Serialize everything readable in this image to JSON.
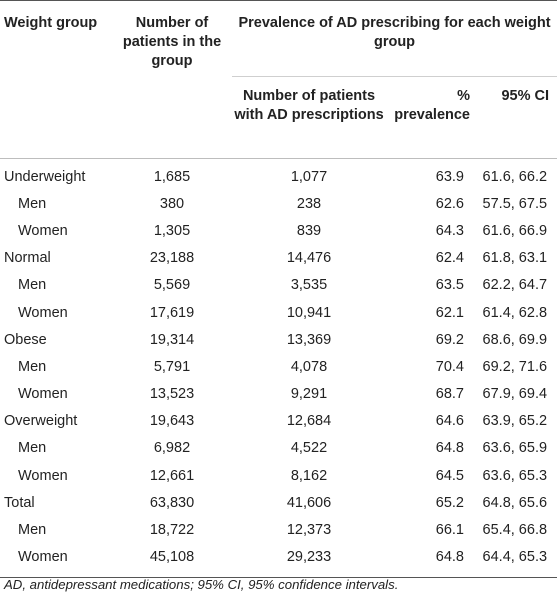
{
  "headers": {
    "weight_group": "Weight group",
    "num_patients": "Number of patients in the group",
    "prevalence_group": "Prevalence of AD prescribing for each weight group",
    "ad_patients": "Number of patients with AD prescriptions",
    "pct_prevalence": "% prevalence",
    "ci": "95% CI"
  },
  "rows": [
    {
      "label": "Underweight",
      "level": "group",
      "n": "1,685",
      "ad": "1,077",
      "pct": "63.9",
      "ci": "61.6, 66.2"
    },
    {
      "label": "Men",
      "level": "sub",
      "n": "380",
      "ad": "238",
      "pct": "62.6",
      "ci": "57.5, 67.5"
    },
    {
      "label": "Women",
      "level": "sub",
      "n": "1,305",
      "ad": "839",
      "pct": "64.3",
      "ci": "61.6, 66.9"
    },
    {
      "label": "Normal",
      "level": "group",
      "n": "23,188",
      "ad": "14,476",
      "pct": "62.4",
      "ci": "61.8, 63.1"
    },
    {
      "label": "Men",
      "level": "sub",
      "n": "5,569",
      "ad": "3,535",
      "pct": "63.5",
      "ci": "62.2, 64.7"
    },
    {
      "label": "Women",
      "level": "sub",
      "n": "17,619",
      "ad": "10,941",
      "pct": "62.1",
      "ci": "61.4, 62.8"
    },
    {
      "label": "Obese",
      "level": "group",
      "n": "19,314",
      "ad": "13,369",
      "pct": "69.2",
      "ci": "68.6, 69.9"
    },
    {
      "label": "Men",
      "level": "sub",
      "n": "5,791",
      "ad": "4,078",
      "pct": "70.4",
      "ci": "69.2, 71.6"
    },
    {
      "label": "Women",
      "level": "sub",
      "n": "13,523",
      "ad": "9,291",
      "pct": "68.7",
      "ci": "67.9, 69.4"
    },
    {
      "label": "Overweight",
      "level": "group",
      "n": "19,643",
      "ad": "12,684",
      "pct": "64.6",
      "ci": "63.9, 65.2"
    },
    {
      "label": "Men",
      "level": "sub",
      "n": "6,982",
      "ad": "4,522",
      "pct": "64.8",
      "ci": "63.6, 65.9"
    },
    {
      "label": "Women",
      "level": "sub",
      "n": "12,661",
      "ad": "8,162",
      "pct": "64.5",
      "ci": "63.6, 65.3"
    },
    {
      "label": "Total",
      "level": "group",
      "n": "63,830",
      "ad": "41,606",
      "pct": "65.2",
      "ci": "64.8, 65.6"
    },
    {
      "label": "Men",
      "level": "sub",
      "n": "18,722",
      "ad": "12,373",
      "pct": "66.1",
      "ci": "65.4, 66.8"
    },
    {
      "label": "Women",
      "level": "sub",
      "n": "45,108",
      "ad": "29,233",
      "pct": "64.8",
      "ci": "64.4, 65.3"
    }
  ],
  "footnote": "AD, antidepressant medications; 95% CI, 95% confidence intervals."
}
